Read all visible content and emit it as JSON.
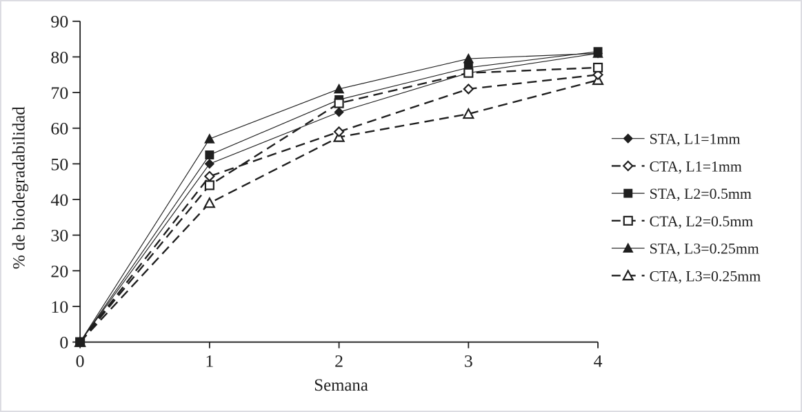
{
  "chart_data": {
    "type": "line",
    "title": "",
    "xlabel": "Semana",
    "ylabel": "% de biodegradabilidad",
    "x": [
      0,
      1,
      2,
      3,
      4
    ],
    "xlim": [
      0,
      4
    ],
    "ylim": [
      0,
      90
    ],
    "x_ticks": [
      "0",
      "1",
      "2",
      "3",
      "4"
    ],
    "y_ticks": [
      "0",
      "10",
      "20",
      "30",
      "40",
      "50",
      "60",
      "70",
      "80",
      "90"
    ],
    "grid": false,
    "legend_position": "right",
    "series": [
      {
        "name": "STA, L1=1mm",
        "line": "solid",
        "marker": "diamond",
        "fill": "filled",
        "values": [
          0,
          50,
          64.5,
          75.5,
          81
        ]
      },
      {
        "name": "CTA, L1=1mm",
        "line": "dashed",
        "marker": "diamond",
        "fill": "open",
        "values": [
          0,
          46.5,
          59,
          71,
          75
        ]
      },
      {
        "name": "STA, L2=0.5mm",
        "line": "solid",
        "marker": "square",
        "fill": "filled",
        "values": [
          0,
          52.5,
          68,
          77,
          81.5
        ]
      },
      {
        "name": "CTA, L2=0.5mm",
        "line": "dashed",
        "marker": "square",
        "fill": "open",
        "values": [
          0,
          44,
          67,
          75.5,
          77
        ]
      },
      {
        "name": "STA, L3=0.25mm",
        "line": "solid",
        "marker": "triangle",
        "fill": "filled",
        "values": [
          0,
          57,
          71,
          79.5,
          81
        ]
      },
      {
        "name": "CTA, L3=0.25mm",
        "line": "dashed",
        "marker": "triangle",
        "fill": "open",
        "values": [
          0,
          39,
          57.5,
          64,
          73.5
        ]
      }
    ],
    "colors": {
      "line": "#1f1f1f",
      "text": "#1f1f1f",
      "background": "#ffffff",
      "frame_border": "#dcdce2"
    }
  }
}
